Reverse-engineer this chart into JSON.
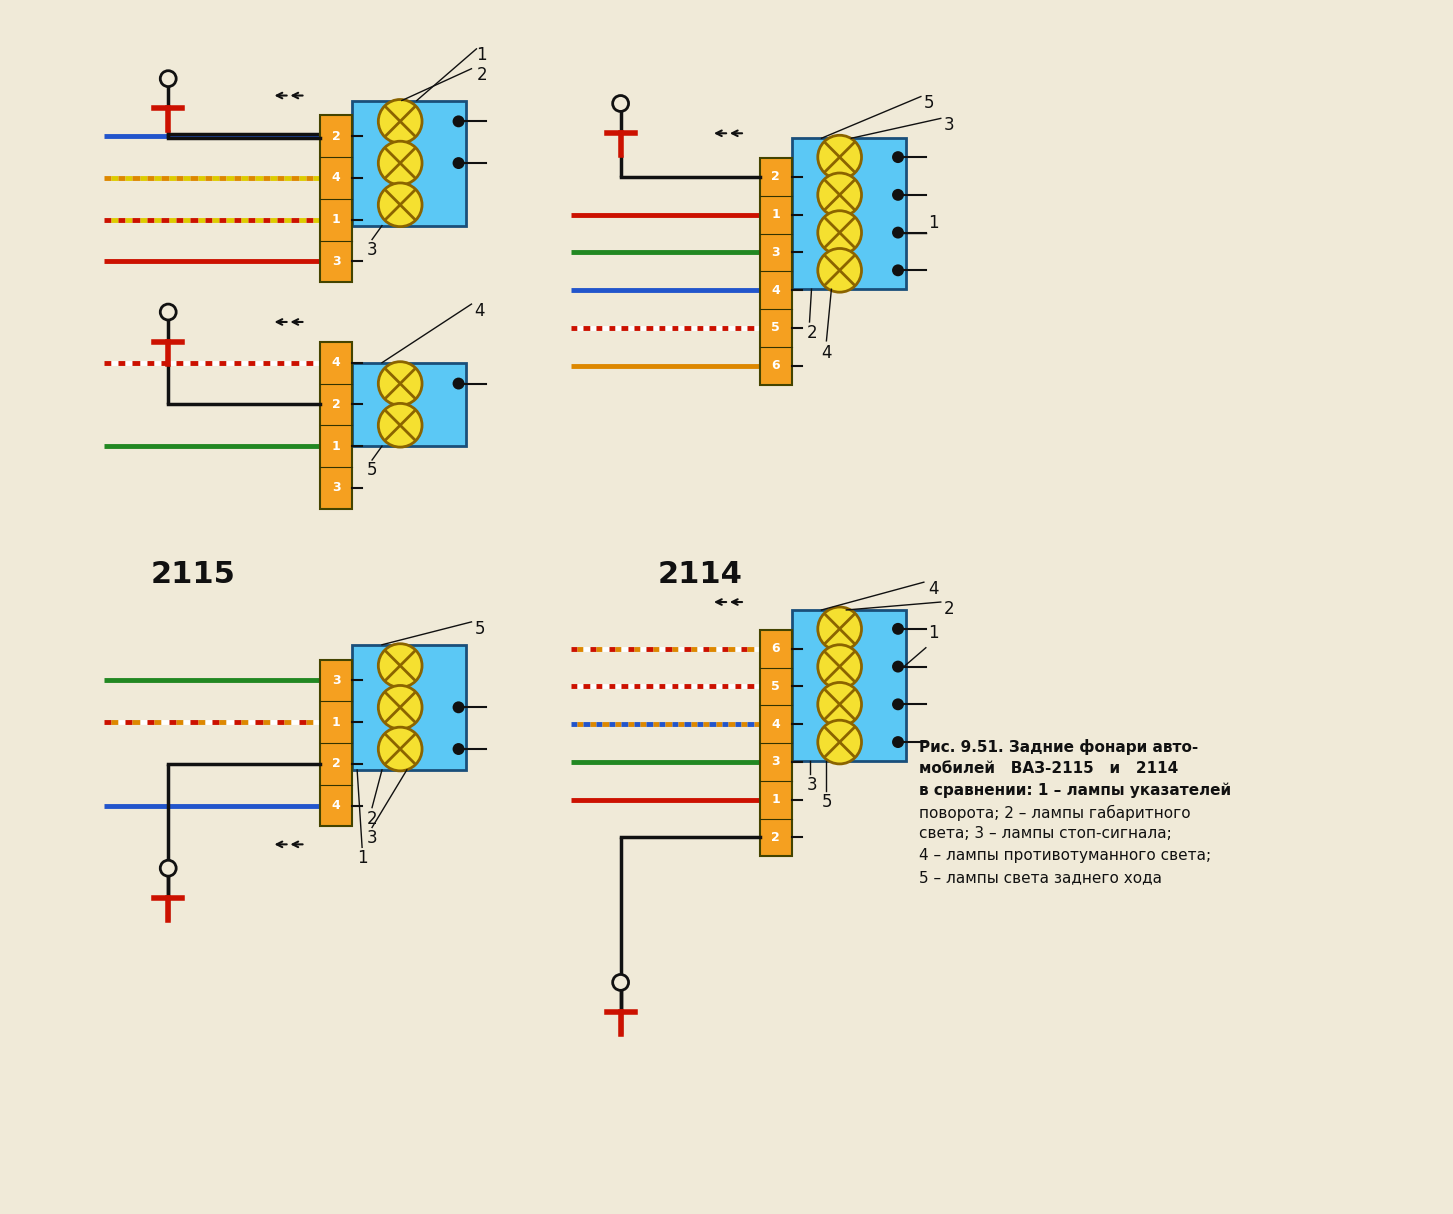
{
  "bg_color": "#f0ead8",
  "title_2115": "2115",
  "title_2114": "2114",
  "connector_color": "#f5a020",
  "lamp_housing_color": "#5bc8f5",
  "lamp_color": "#f5e030",
  "lamp_x_color": "#8b6400",
  "wire_blue": "#2255cc",
  "wire_green": "#228822",
  "wire_red": "#cc1100",
  "wire_orange": "#dd8800",
  "wire_black": "#111111",
  "wire_yellow": "#ddcc00",
  "ground_color": "#cc1100",
  "text_color": "#111111",
  "legend_lines": [
    "Рис. 9.51. Задние фонари авто-",
    "мобилей   ВАЗ-2115   и   2114",
    "в сравнении: 1 – лампы указателей",
    "поворота; 2 – лампы габаритного",
    "света; 3 – лампы стоп-сигнала;",
    "4 – лампы противотуманного света;",
    "5 – лампы света заднего хода"
  ]
}
